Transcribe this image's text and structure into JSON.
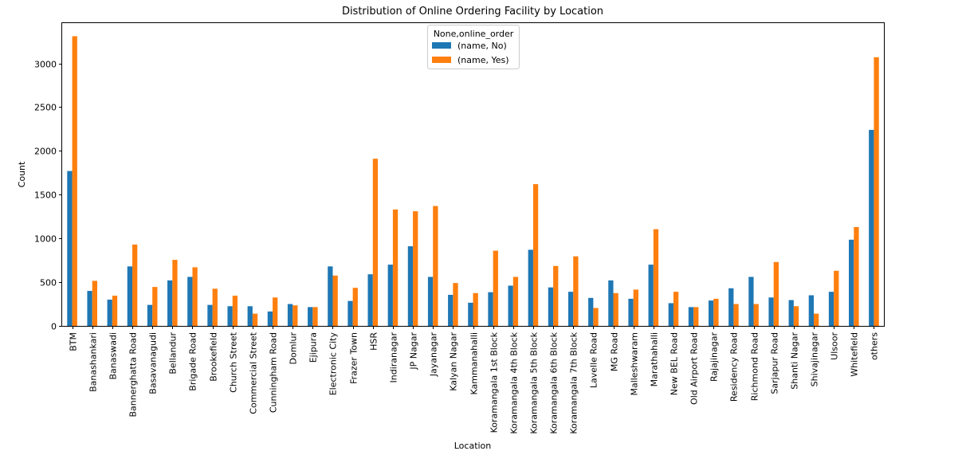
{
  "chart_data": {
    "type": "bar",
    "title": "Distribution of Online Ordering Facility by Location",
    "xlabel": "Location",
    "ylabel": "Count",
    "ylim": [
      0,
      3460
    ],
    "yticks": [
      0,
      500,
      1000,
      1500,
      2000,
      2500,
      3000
    ],
    "grid": false,
    "legend": {
      "title": "None,online_order",
      "placement": "top-center"
    },
    "categories": [
      "BTM",
      "Banashankari",
      "Banaswadi",
      "Bannerghatta Road",
      "Basavanagudi",
      "Bellandur",
      "Brigade Road",
      "Brookefield",
      "Church Street",
      "Commercial Street",
      "Cunningham Road",
      "Domlur",
      "Ejipura",
      "Electronic City",
      "Frazer Town",
      "HSR",
      "Indiranagar",
      "JP Nagar",
      "Jayanagar",
      "Kalyan Nagar",
      "Kammanahalli",
      "Koramangala 1st Block",
      "Koramangala 4th Block",
      "Koramangala 5th Block",
      "Koramangala 6th Block",
      "Koramangala 7th Block",
      "Lavelle Road",
      "MG Road",
      "Malleshwaram",
      "Marathahalli",
      "New BEL Road",
      "Old Airport Road",
      "Rajajinagar",
      "Residency Road",
      "Richmond Road",
      "Sarjapur Road",
      "Shanti Nagar",
      "Shivajinagar",
      "Ulsoor",
      "Whitefield",
      "others"
    ],
    "series": [
      {
        "name": "(name, No)",
        "color": "#1f77b4",
        "values": [
          1770,
          400,
          300,
          680,
          240,
          520,
          560,
          240,
          225,
          225,
          165,
          250,
          215,
          680,
          285,
          590,
          700,
          910,
          560,
          355,
          265,
          385,
          460,
          870,
          440,
          390,
          320,
          520,
          310,
          700,
          260,
          215,
          290,
          430,
          560,
          325,
          295,
          350,
          390,
          985,
          2240
        ]
      },
      {
        "name": "(name, Yes)",
        "color": "#ff7f0e",
        "values": [
          3310,
          515,
          345,
          930,
          445,
          755,
          670,
          425,
          345,
          140,
          325,
          235,
          215,
          575,
          435,
          1910,
          1330,
          1310,
          1370,
          490,
          375,
          860,
          560,
          1620,
          685,
          795,
          205,
          375,
          415,
          1105,
          390,
          215,
          310,
          250,
          250,
          730,
          225,
          140,
          630,
          1130,
          3070
        ]
      }
    ]
  }
}
